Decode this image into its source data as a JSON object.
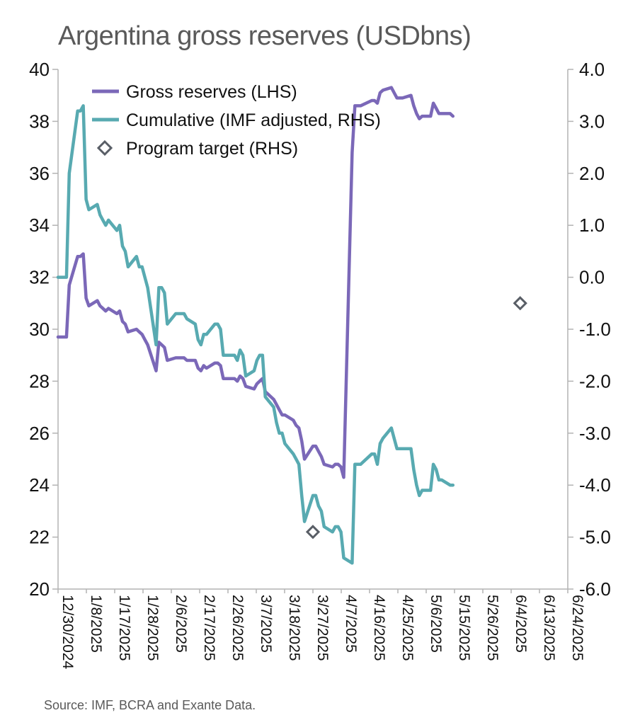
{
  "chart_data": {
    "type": "line",
    "title": "Argentina gross reserves (USDbns)",
    "source": "Source: IMF, BCRA and Exante Data.",
    "x_tick_labels": [
      "12/30/2024",
      "1/8/2025",
      "1/17/2025",
      "1/28/2025",
      "2/6/2025",
      "2/17/2025",
      "2/26/2025",
      "3/7/2025",
      "3/18/2025",
      "3/27/2025",
      "4/7/2025",
      "4/16/2025",
      "4/25/2025",
      "5/6/2025",
      "5/15/2025",
      "5/26/2025",
      "6/4/2025",
      "6/13/2025",
      "6/24/2025"
    ],
    "y_left": {
      "range": [
        20,
        40
      ],
      "ticks": [
        "20",
        "22",
        "24",
        "26",
        "28",
        "30",
        "32",
        "34",
        "36",
        "38",
        "40"
      ]
    },
    "y_right": {
      "range": [
        -6.0,
        4.0
      ],
      "ticks": [
        "-6.0",
        "-5.0",
        "-4.0",
        "-3.0",
        "-2.0",
        "-1.0",
        "0.0",
        "1.0",
        "2.0",
        "3.0",
        "4.0"
      ]
    },
    "legend_position": "top-left",
    "grid": false,
    "series": [
      {
        "name": "Gross reserves (LHS)",
        "axis": "left",
        "color": "#7b68b8",
        "points": [
          [
            "2024-12-30",
            29.7
          ],
          [
            "2025-01-02",
            29.7
          ],
          [
            "2025-01-03",
            31.7
          ],
          [
            "2025-01-06",
            32.8
          ],
          [
            "2025-01-07",
            32.8
          ],
          [
            "2025-01-08",
            32.9
          ],
          [
            "2025-01-09",
            31.2
          ],
          [
            "2025-01-10",
            30.9
          ],
          [
            "2025-01-13",
            31.1
          ],
          [
            "2025-01-14",
            30.9
          ],
          [
            "2025-01-15",
            30.8
          ],
          [
            "2025-01-16",
            30.7
          ],
          [
            "2025-01-17",
            30.8
          ],
          [
            "2025-01-20",
            30.6
          ],
          [
            "2025-01-21",
            30.7
          ],
          [
            "2025-01-22",
            30.3
          ],
          [
            "2025-01-23",
            30.2
          ],
          [
            "2025-01-24",
            29.9
          ],
          [
            "2025-01-27",
            30.0
          ],
          [
            "2025-01-28",
            29.9
          ],
          [
            "2025-01-29",
            29.8
          ],
          [
            "2025-01-30",
            29.6
          ],
          [
            "2025-01-31",
            29.4
          ],
          [
            "2025-02-03",
            28.4
          ],
          [
            "2025-02-04",
            29.5
          ],
          [
            "2025-02-05",
            29.4
          ],
          [
            "2025-02-06",
            29.3
          ],
          [
            "2025-02-07",
            28.8
          ],
          [
            "2025-02-10",
            28.9
          ],
          [
            "2025-02-11",
            28.9
          ],
          [
            "2025-02-12",
            28.9
          ],
          [
            "2025-02-13",
            28.9
          ],
          [
            "2025-02-14",
            28.8
          ],
          [
            "2025-02-17",
            28.8
          ],
          [
            "2025-02-18",
            28.5
          ],
          [
            "2025-02-19",
            28.4
          ],
          [
            "2025-02-20",
            28.6
          ],
          [
            "2025-02-21",
            28.5
          ],
          [
            "2025-02-24",
            28.7
          ],
          [
            "2025-02-25",
            28.7
          ],
          [
            "2025-02-26",
            28.6
          ],
          [
            "2025-02-27",
            28.1
          ],
          [
            "2025-02-28",
            28.1
          ],
          [
            "2025-03-03",
            28.1
          ],
          [
            "2025-03-04",
            28.0
          ],
          [
            "2025-03-05",
            28.2
          ],
          [
            "2025-03-06",
            28.1
          ],
          [
            "2025-03-07",
            27.8
          ],
          [
            "2025-03-10",
            27.7
          ],
          [
            "2025-03-11",
            27.9
          ],
          [
            "2025-03-12",
            28.0
          ],
          [
            "2025-03-13",
            28.1
          ],
          [
            "2025-03-14",
            27.6
          ],
          [
            "2025-03-17",
            27.3
          ],
          [
            "2025-03-18",
            27.1
          ],
          [
            "2025-03-19",
            26.9
          ],
          [
            "2025-03-20",
            26.7
          ],
          [
            "2025-03-21",
            26.7
          ],
          [
            "2025-03-24",
            26.5
          ],
          [
            "2025-03-25",
            26.3
          ],
          [
            "2025-03-26",
            26.2
          ],
          [
            "2025-03-27",
            25.7
          ],
          [
            "2025-03-28",
            25.0
          ],
          [
            "2025-03-31",
            25.5
          ],
          [
            "2025-04-01",
            25.5
          ],
          [
            "2025-04-02",
            25.3
          ],
          [
            "2025-04-03",
            25.1
          ],
          [
            "2025-04-04",
            24.8
          ],
          [
            "2025-04-07",
            24.7
          ],
          [
            "2025-04-08",
            24.8
          ],
          [
            "2025-04-09",
            24.8
          ],
          [
            "2025-04-10",
            24.7
          ],
          [
            "2025-04-11",
            24.3
          ],
          [
            "2025-04-14",
            36.8
          ],
          [
            "2025-04-15",
            38.6
          ],
          [
            "2025-04-16",
            38.6
          ],
          [
            "2025-04-17",
            38.6
          ],
          [
            "2025-04-21",
            38.8
          ],
          [
            "2025-04-22",
            38.8
          ],
          [
            "2025-04-23",
            38.7
          ],
          [
            "2025-04-24",
            39.1
          ],
          [
            "2025-04-25",
            39.2
          ],
          [
            "2025-04-28",
            39.3
          ],
          [
            "2025-04-29",
            39.1
          ],
          [
            "2025-04-30",
            38.9
          ],
          [
            "2025-05-02",
            38.9
          ],
          [
            "2025-05-05",
            39.0
          ],
          [
            "2025-05-06",
            38.6
          ],
          [
            "2025-05-07",
            38.3
          ],
          [
            "2025-05-08",
            38.1
          ],
          [
            "2025-05-09",
            38.2
          ],
          [
            "2025-05-12",
            38.2
          ],
          [
            "2025-05-13",
            38.7
          ],
          [
            "2025-05-14",
            38.5
          ],
          [
            "2025-05-15",
            38.3
          ],
          [
            "2025-05-16",
            38.3
          ],
          [
            "2025-05-19",
            38.3
          ],
          [
            "2025-05-20",
            38.2
          ]
        ]
      },
      {
        "name": "Cumulative (IMF adjusted, RHS)",
        "axis": "right",
        "color": "#58aab1",
        "points": [
          [
            "2024-12-30",
            0.0
          ],
          [
            "2025-01-02",
            0.0
          ],
          [
            "2025-01-03",
            2.0
          ],
          [
            "2025-01-06",
            3.2
          ],
          [
            "2025-01-07",
            3.2
          ],
          [
            "2025-01-08",
            3.3
          ],
          [
            "2025-01-09",
            1.5
          ],
          [
            "2025-01-10",
            1.3
          ],
          [
            "2025-01-13",
            1.4
          ],
          [
            "2025-01-14",
            1.2
          ],
          [
            "2025-01-15",
            1.1
          ],
          [
            "2025-01-16",
            1.0
          ],
          [
            "2025-01-17",
            1.1
          ],
          [
            "2025-01-20",
            0.9
          ],
          [
            "2025-01-21",
            1.0
          ],
          [
            "2025-01-22",
            0.6
          ],
          [
            "2025-01-23",
            0.5
          ],
          [
            "2025-01-24",
            0.2
          ],
          [
            "2025-01-27",
            0.4
          ],
          [
            "2025-01-28",
            0.2
          ],
          [
            "2025-01-29",
            0.2
          ],
          [
            "2025-01-30",
            0.0
          ],
          [
            "2025-01-31",
            -0.2
          ],
          [
            "2025-02-03",
            -1.3
          ],
          [
            "2025-02-04",
            -0.2
          ],
          [
            "2025-02-05",
            -0.2
          ],
          [
            "2025-02-06",
            -0.3
          ],
          [
            "2025-02-07",
            -0.9
          ],
          [
            "2025-02-10",
            -0.7
          ],
          [
            "2025-02-11",
            -0.7
          ],
          [
            "2025-02-12",
            -0.7
          ],
          [
            "2025-02-13",
            -0.7
          ],
          [
            "2025-02-14",
            -0.8
          ],
          [
            "2025-02-17",
            -0.9
          ],
          [
            "2025-02-18",
            -1.2
          ],
          [
            "2025-02-19",
            -1.3
          ],
          [
            "2025-02-20",
            -1.1
          ],
          [
            "2025-02-21",
            -1.1
          ],
          [
            "2025-02-24",
            -0.9
          ],
          [
            "2025-02-25",
            -0.9
          ],
          [
            "2025-02-26",
            -1.0
          ],
          [
            "2025-02-27",
            -1.5
          ],
          [
            "2025-02-28",
            -1.5
          ],
          [
            "2025-03-03",
            -1.5
          ],
          [
            "2025-03-04",
            -1.6
          ],
          [
            "2025-03-05",
            -1.4
          ],
          [
            "2025-03-06",
            -1.5
          ],
          [
            "2025-03-07",
            -1.9
          ],
          [
            "2025-03-10",
            -1.8
          ],
          [
            "2025-03-11",
            -1.6
          ],
          [
            "2025-03-12",
            -1.5
          ],
          [
            "2025-03-13",
            -1.5
          ],
          [
            "2025-03-14",
            -2.3
          ],
          [
            "2025-03-17",
            -2.5
          ],
          [
            "2025-03-18",
            -2.8
          ],
          [
            "2025-03-19",
            -3.0
          ],
          [
            "2025-03-20",
            -3.0
          ],
          [
            "2025-03-21",
            -3.2
          ],
          [
            "2025-03-24",
            -3.4
          ],
          [
            "2025-03-25",
            -3.5
          ],
          [
            "2025-03-26",
            -3.6
          ],
          [
            "2025-03-27",
            -4.2
          ],
          [
            "2025-03-28",
            -4.7
          ],
          [
            "2025-03-31",
            -4.2
          ],
          [
            "2025-04-01",
            -4.2
          ],
          [
            "2025-04-02",
            -4.4
          ],
          [
            "2025-04-03",
            -4.5
          ],
          [
            "2025-04-04",
            -4.8
          ],
          [
            "2025-04-07",
            -4.9
          ],
          [
            "2025-04-08",
            -4.8
          ],
          [
            "2025-04-09",
            -4.8
          ],
          [
            "2025-04-10",
            -4.9
          ],
          [
            "2025-04-11",
            -5.4
          ],
          [
            "2025-04-14",
            -5.5
          ],
          [
            "2025-04-15",
            -3.6
          ],
          [
            "2025-04-16",
            -3.6
          ],
          [
            "2025-04-17",
            -3.6
          ],
          [
            "2025-04-21",
            -3.4
          ],
          [
            "2025-04-22",
            -3.4
          ],
          [
            "2025-04-23",
            -3.6
          ],
          [
            "2025-04-24",
            -3.2
          ],
          [
            "2025-04-25",
            -3.1
          ],
          [
            "2025-04-28",
            -2.9
          ],
          [
            "2025-04-29",
            -3.1
          ],
          [
            "2025-04-30",
            -3.3
          ],
          [
            "2025-05-02",
            -3.3
          ],
          [
            "2025-05-05",
            -3.3
          ],
          [
            "2025-05-06",
            -3.7
          ],
          [
            "2025-05-07",
            -4.0
          ],
          [
            "2025-05-08",
            -4.2
          ],
          [
            "2025-05-09",
            -4.1
          ],
          [
            "2025-05-12",
            -4.1
          ],
          [
            "2025-05-13",
            -3.6
          ],
          [
            "2025-05-14",
            -3.7
          ],
          [
            "2025-05-15",
            -3.9
          ],
          [
            "2025-05-16",
            -3.9
          ],
          [
            "2025-05-19",
            -4.0
          ],
          [
            "2025-05-20",
            -4.0
          ]
        ]
      },
      {
        "name": "Program target (RHS)",
        "axis": "right",
        "color": "#595e66",
        "marker": "diamond",
        "points": [
          [
            "2025-03-31",
            -4.9
          ],
          [
            "2025-06-13",
            -0.5
          ]
        ]
      }
    ]
  }
}
